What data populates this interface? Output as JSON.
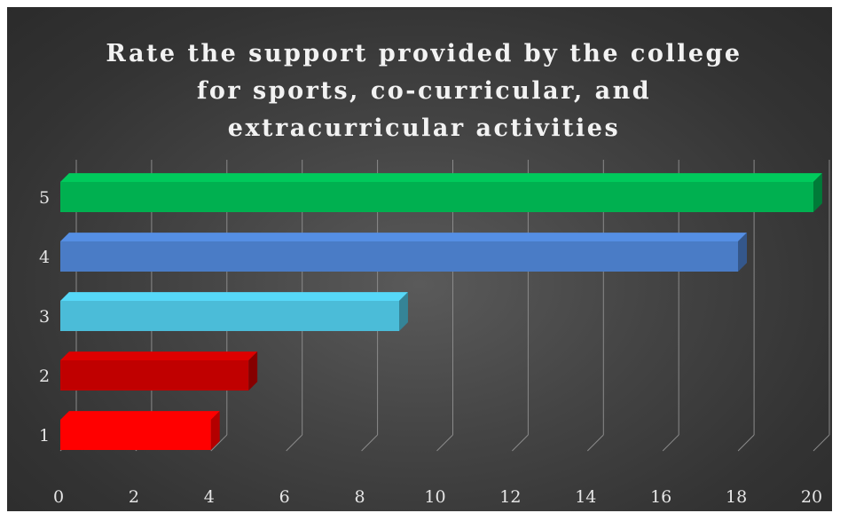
{
  "chart_data": {
    "type": "bar",
    "orientation": "horizontal",
    "style": "3d",
    "title": "Rate the support provided by the college for sports, co-curricular, and extracurricular activities",
    "title_lines": [
      "Rate the support provided by the college",
      "for sports, co-curricular, and",
      "extracurricular activities"
    ],
    "categories": [
      "1",
      "2",
      "3",
      "4",
      "5"
    ],
    "values": [
      4,
      5,
      9,
      18,
      20
    ],
    "colors": [
      "#ff0000",
      "#c00000",
      "#4bbcd8",
      "#4a7cc6",
      "#00b050"
    ],
    "xlim": [
      0,
      20
    ],
    "x_ticks": [
      "0",
      "2",
      "4",
      "6",
      "8",
      "10",
      "12",
      "14",
      "16",
      "18",
      "20"
    ],
    "grid": true,
    "background": "#3a3a3a"
  }
}
